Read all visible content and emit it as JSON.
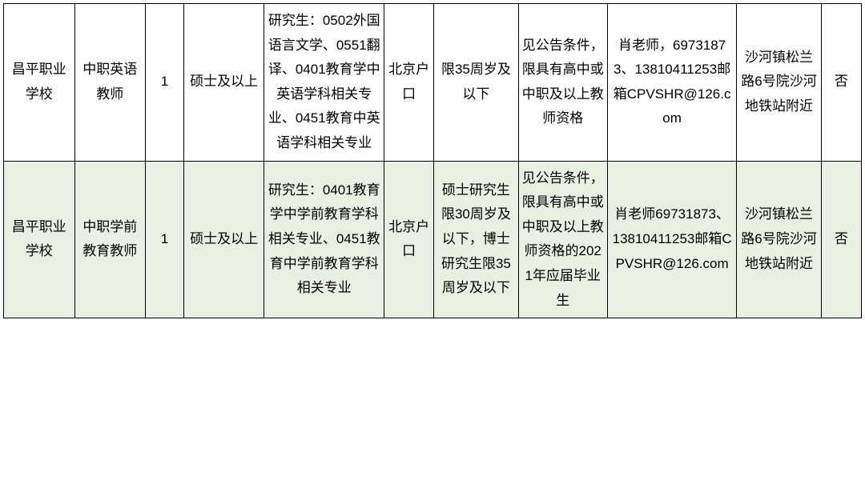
{
  "table": {
    "background_color": "#ffffff",
    "alt_row_color": "#e9efe2",
    "border_color": "#000000",
    "text_color": "#000000",
    "base_fontsize": 17,
    "line_height": 1.8,
    "column_widths_pct": [
      7.4,
      7.4,
      4.0,
      8.4,
      12.5,
      5.2,
      8.8,
      9.3,
      13.5,
      8.8,
      4.2
    ],
    "rows": [
      {
        "cells": [
          "昌平职业学校",
          "中职英语教师",
          "1",
          "硕士及以上",
          "研究生：0502外国语言文学、0551翻译、0401教育学中英语学科相关专业、0451教育中英语学科相关专业",
          "北京户口",
          "限35周岁及以下",
          "见公告条件，限具有高中或中职及以上教师资格",
          "肖老师，69731873、13810411253邮箱CPVSHR@126.com",
          "沙河镇松兰路6号院沙河地铁站附近",
          "否"
        ]
      },
      {
        "cells": [
          "昌平职业学校",
          "中职学前教育教师",
          "1",
          "硕士及以上",
          "研究生：0401教育学中学前教育学科相关专业、0451教育中学前教育学科相关专业",
          "北京户口",
          "硕士研究生限30周岁及以下，博士研究生限35周岁及以下",
          "见公告条件，限具有高中或中职及以上教师资格的2021年应届毕业生",
          "肖老师69731873、13810411253邮箱CPVSHR@126.com",
          "沙河镇松兰路6号院沙河地铁站附近",
          "否"
        ]
      }
    ]
  }
}
